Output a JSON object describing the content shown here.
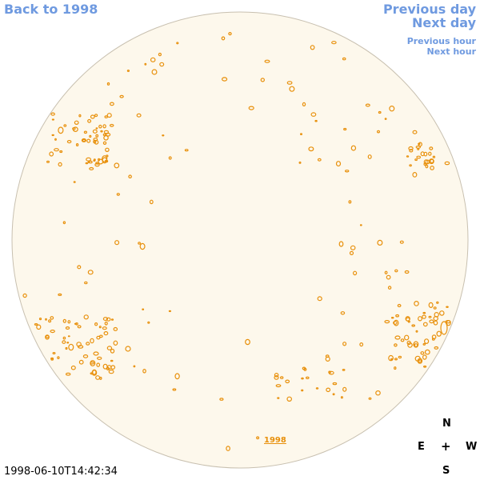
{
  "nav": {
    "back": "Back to 1998",
    "previous_day": "Previous day",
    "next_day": "Next day",
    "previous_hour": "Previous hour",
    "next_hour": "Next hour"
  },
  "compass": {
    "north": "N",
    "east": "E",
    "center": "+",
    "west": "W",
    "south": "S"
  },
  "timestamp": "1998-06-10T14:42:34",
  "year_label": "1998",
  "colors": {
    "link": "#6f9ae0",
    "disk_fill": "#fdf8ec",
    "disk_stroke": "#c8c0b0",
    "contour": "#e8900b"
  }
}
